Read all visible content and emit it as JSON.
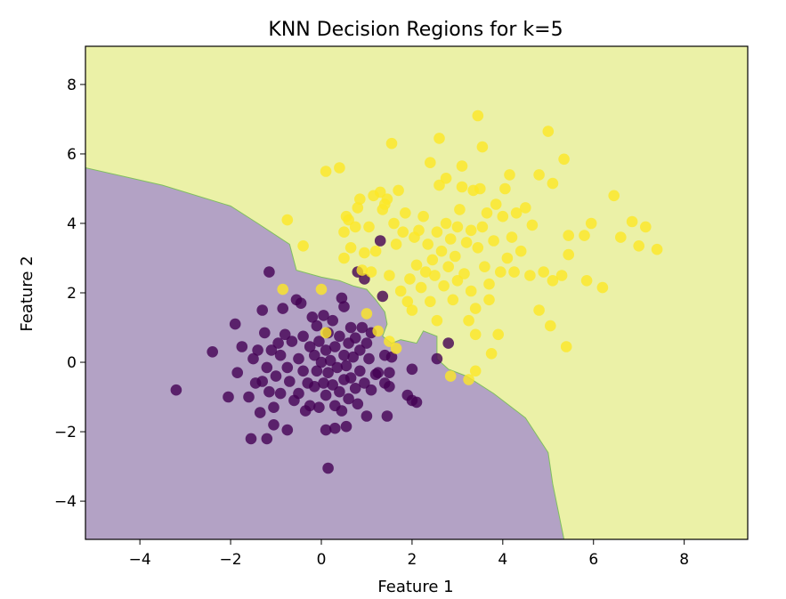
{
  "chart_data": {
    "type": "scatter",
    "title": "KNN Decision Regions for k=5",
    "xlabel": "Feature 1",
    "ylabel": "Feature 2",
    "xlim": [
      -5.2,
      9.4
    ],
    "ylim": [
      -5.1,
      9.1
    ],
    "xticks": [
      -4,
      -2,
      0,
      2,
      4,
      6,
      8
    ],
    "yticks": [
      -4,
      -2,
      0,
      2,
      4,
      6,
      8
    ],
    "xtick_labels": [
      "−4",
      "−2",
      "0",
      "2",
      "4",
      "6",
      "8"
    ],
    "ytick_labels": [
      "−4",
      "−2",
      "0",
      "2",
      "4",
      "6",
      "8"
    ],
    "grid": false,
    "legend": null,
    "colors": {
      "class0_point": "#440154",
      "class1_point": "#fde725",
      "class0_region": "#b3a2c5",
      "class1_region": "#ebf1a7",
      "boundary": "#7fbf5f"
    },
    "decision_boundary": [
      [
        -5.2,
        5.6
      ],
      [
        -3.5,
        5.1
      ],
      [
        -2.0,
        4.5
      ],
      [
        -1.4,
        4.0
      ],
      [
        -0.7,
        3.4
      ],
      [
        -0.55,
        2.65
      ],
      [
        0.0,
        2.45
      ],
      [
        0.4,
        2.35
      ],
      [
        0.7,
        2.2
      ],
      [
        1.0,
        2.1
      ],
      [
        1.2,
        1.8
      ],
      [
        1.4,
        1.45
      ],
      [
        1.45,
        1.1
      ],
      [
        1.35,
        0.75
      ],
      [
        1.55,
        0.55
      ],
      [
        1.75,
        0.65
      ],
      [
        2.1,
        0.55
      ],
      [
        2.25,
        0.9
      ],
      [
        2.55,
        0.75
      ],
      [
        2.55,
        0.1
      ],
      [
        2.8,
        -0.2
      ],
      [
        3.2,
        -0.4
      ],
      [
        3.8,
        -0.9
      ],
      [
        4.5,
        -1.6
      ],
      [
        5.0,
        -2.6
      ],
      [
        5.1,
        -3.5
      ],
      [
        5.35,
        -5.1
      ]
    ],
    "series": [
      {
        "class": 0,
        "points": [
          [
            -3.2,
            -0.8
          ],
          [
            -2.4,
            0.3
          ],
          [
            -2.05,
            -1.0
          ],
          [
            -1.9,
            1.1
          ],
          [
            -1.85,
            -0.3
          ],
          [
            -1.75,
            0.45
          ],
          [
            -1.6,
            -1.0
          ],
          [
            -1.55,
            -2.2
          ],
          [
            -1.5,
            0.1
          ],
          [
            -1.45,
            -0.6
          ],
          [
            -1.4,
            0.35
          ],
          [
            -1.35,
            -1.45
          ],
          [
            -1.3,
            1.5
          ],
          [
            -1.3,
            -0.55
          ],
          [
            -1.25,
            0.85
          ],
          [
            -1.2,
            -2.2
          ],
          [
            -1.2,
            -0.15
          ],
          [
            -1.15,
            2.6
          ],
          [
            -1.15,
            -0.85
          ],
          [
            -1.1,
            0.35
          ],
          [
            -1.05,
            -1.3
          ],
          [
            -1.05,
            -1.8
          ],
          [
            -1.0,
            -0.4
          ],
          [
            -0.95,
            0.55
          ],
          [
            -0.9,
            0.2
          ],
          [
            -0.9,
            -0.9
          ],
          [
            -0.85,
            1.55
          ],
          [
            -0.8,
            0.8
          ],
          [
            -0.75,
            -0.15
          ],
          [
            -0.75,
            -1.95
          ],
          [
            -0.7,
            -0.55
          ],
          [
            -0.65,
            0.6
          ],
          [
            -0.6,
            -1.1
          ],
          [
            -0.55,
            1.8
          ],
          [
            -0.5,
            0.1
          ],
          [
            -0.5,
            -0.9
          ],
          [
            -0.45,
            1.7
          ],
          [
            -0.4,
            0.75
          ],
          [
            -0.4,
            -0.25
          ],
          [
            -0.35,
            -1.4
          ],
          [
            -0.3,
            -0.6
          ],
          [
            -0.25,
            0.45
          ],
          [
            -0.25,
            -1.25
          ],
          [
            -0.2,
            1.3
          ],
          [
            -0.15,
            0.2
          ],
          [
            -0.15,
            -0.7
          ],
          [
            -0.1,
            1.05
          ],
          [
            -0.1,
            -0.25
          ],
          [
            -0.05,
            0.6
          ],
          [
            -0.05,
            -1.3
          ],
          [
            0.0,
            0.0
          ],
          [
            0.05,
            -0.6
          ],
          [
            0.05,
            1.35
          ],
          [
            0.1,
            0.35
          ],
          [
            0.1,
            -0.95
          ],
          [
            0.1,
            -1.95
          ],
          [
            0.15,
            -0.3
          ],
          [
            0.15,
            0.85
          ],
          [
            0.15,
            -3.05
          ],
          [
            0.2,
            0.05
          ],
          [
            0.25,
            -0.65
          ],
          [
            0.25,
            1.2
          ],
          [
            0.3,
            0.45
          ],
          [
            0.3,
            -1.25
          ],
          [
            0.3,
            -1.9
          ],
          [
            0.35,
            -0.15
          ],
          [
            0.4,
            0.75
          ],
          [
            0.4,
            -0.85
          ],
          [
            0.45,
            -1.4
          ],
          [
            0.45,
            1.85
          ],
          [
            0.5,
            0.2
          ],
          [
            0.5,
            -0.5
          ],
          [
            0.5,
            1.6
          ],
          [
            0.55,
            -0.1
          ],
          [
            0.55,
            -1.85
          ],
          [
            0.6,
            0.55
          ],
          [
            0.6,
            -1.05
          ],
          [
            0.65,
            1.0
          ],
          [
            0.65,
            -0.45
          ],
          [
            0.7,
            0.15
          ],
          [
            0.75,
            -0.75
          ],
          [
            0.75,
            0.7
          ],
          [
            0.8,
            -1.2
          ],
          [
            0.8,
            2.6
          ],
          [
            0.85,
            0.35
          ],
          [
            0.85,
            -0.25
          ],
          [
            0.9,
            1.0
          ],
          [
            0.95,
            2.4
          ],
          [
            0.95,
            -0.6
          ],
          [
            1.0,
            0.55
          ],
          [
            1.0,
            -1.55
          ],
          [
            1.05,
            0.1
          ],
          [
            1.1,
            -0.8
          ],
          [
            1.1,
            0.85
          ],
          [
            1.2,
            -0.35
          ],
          [
            1.25,
            -0.3
          ],
          [
            1.3,
            3.5
          ],
          [
            1.35,
            1.9
          ],
          [
            1.4,
            0.2
          ],
          [
            1.4,
            -0.6
          ],
          [
            1.45,
            -1.55
          ],
          [
            1.5,
            -0.3
          ],
          [
            1.5,
            -0.7
          ],
          [
            1.55,
            0.15
          ],
          [
            1.9,
            -0.95
          ],
          [
            2.0,
            -1.1
          ],
          [
            2.0,
            -0.2
          ],
          [
            2.1,
            -1.15
          ],
          [
            2.55,
            0.1
          ],
          [
            2.8,
            0.55
          ]
        ]
      },
      {
        "class": 1,
        "points": [
          [
            -0.85,
            2.1
          ],
          [
            -0.75,
            4.1
          ],
          [
            -0.4,
            3.35
          ],
          [
            0.0,
            2.1
          ],
          [
            0.1,
            0.85
          ],
          [
            0.1,
            5.5
          ],
          [
            0.4,
            5.6
          ],
          [
            0.5,
            3.0
          ],
          [
            0.5,
            3.75
          ],
          [
            0.55,
            4.2
          ],
          [
            0.6,
            4.1
          ],
          [
            0.65,
            3.3
          ],
          [
            0.75,
            3.9
          ],
          [
            0.8,
            4.45
          ],
          [
            0.85,
            4.7
          ],
          [
            0.9,
            2.65
          ],
          [
            0.95,
            3.15
          ],
          [
            1.0,
            1.4
          ],
          [
            1.05,
            3.9
          ],
          [
            1.1,
            2.6
          ],
          [
            1.15,
            4.8
          ],
          [
            1.2,
            3.2
          ],
          [
            1.25,
            0.9
          ],
          [
            1.3,
            4.9
          ],
          [
            1.35,
            4.4
          ],
          [
            1.4,
            4.55
          ],
          [
            1.45,
            4.7
          ],
          [
            1.5,
            2.5
          ],
          [
            1.5,
            0.6
          ],
          [
            1.55,
            6.3
          ],
          [
            1.6,
            4.0
          ],
          [
            1.65,
            3.4
          ],
          [
            1.65,
            0.4
          ],
          [
            1.7,
            4.95
          ],
          [
            1.75,
            2.05
          ],
          [
            1.8,
            3.75
          ],
          [
            1.85,
            4.3
          ],
          [
            1.9,
            1.75
          ],
          [
            1.95,
            2.4
          ],
          [
            2.0,
            1.5
          ],
          [
            2.05,
            3.6
          ],
          [
            2.1,
            2.8
          ],
          [
            2.15,
            3.8
          ],
          [
            2.2,
            2.15
          ],
          [
            2.25,
            4.2
          ],
          [
            2.3,
            2.6
          ],
          [
            2.35,
            3.4
          ],
          [
            2.4,
            5.75
          ],
          [
            2.4,
            1.75
          ],
          [
            2.45,
            2.95
          ],
          [
            2.5,
            2.5
          ],
          [
            2.55,
            1.2
          ],
          [
            2.55,
            3.75
          ],
          [
            2.6,
            5.1
          ],
          [
            2.6,
            6.45
          ],
          [
            2.65,
            3.2
          ],
          [
            2.7,
            2.2
          ],
          [
            2.75,
            4.0
          ],
          [
            2.75,
            5.3
          ],
          [
            2.8,
            2.75
          ],
          [
            2.85,
            3.55
          ],
          [
            2.85,
            -0.4
          ],
          [
            2.9,
            1.8
          ],
          [
            2.95,
            3.05
          ],
          [
            3.0,
            3.9
          ],
          [
            3.0,
            2.35
          ],
          [
            3.05,
            4.4
          ],
          [
            3.1,
            5.05
          ],
          [
            3.1,
            5.65
          ],
          [
            3.15,
            2.55
          ],
          [
            3.2,
            3.45
          ],
          [
            3.25,
            1.2
          ],
          [
            3.25,
            -0.5
          ],
          [
            3.3,
            3.8
          ],
          [
            3.3,
            2.05
          ],
          [
            3.35,
            4.95
          ],
          [
            3.4,
            1.55
          ],
          [
            3.4,
            0.8
          ],
          [
            3.4,
            -0.25
          ],
          [
            3.45,
            7.1
          ],
          [
            3.45,
            3.3
          ],
          [
            3.5,
            5.0
          ],
          [
            3.55,
            6.2
          ],
          [
            3.55,
            3.9
          ],
          [
            3.6,
            2.75
          ],
          [
            3.65,
            4.3
          ],
          [
            3.7,
            1.8
          ],
          [
            3.7,
            2.25
          ],
          [
            3.75,
            0.25
          ],
          [
            3.8,
            3.5
          ],
          [
            3.85,
            4.55
          ],
          [
            3.9,
            0.8
          ],
          [
            3.95,
            2.6
          ],
          [
            4.0,
            4.2
          ],
          [
            4.05,
            5.0
          ],
          [
            4.1,
            3.0
          ],
          [
            4.15,
            5.4
          ],
          [
            4.2,
            3.6
          ],
          [
            4.25,
            2.6
          ],
          [
            4.3,
            4.3
          ],
          [
            4.4,
            3.2
          ],
          [
            4.5,
            4.45
          ],
          [
            4.6,
            2.5
          ],
          [
            4.65,
            3.95
          ],
          [
            4.8,
            5.4
          ],
          [
            4.8,
            1.5
          ],
          [
            4.9,
            2.6
          ],
          [
            5.0,
            6.65
          ],
          [
            5.05,
            1.05
          ],
          [
            5.1,
            5.15
          ],
          [
            5.1,
            2.35
          ],
          [
            5.3,
            2.5
          ],
          [
            5.35,
            5.85
          ],
          [
            5.4,
            0.45
          ],
          [
            5.45,
            3.1
          ],
          [
            5.45,
            3.65
          ],
          [
            5.8,
            3.65
          ],
          [
            5.85,
            2.35
          ],
          [
            5.95,
            4.0
          ],
          [
            6.2,
            2.15
          ],
          [
            6.45,
            4.8
          ],
          [
            6.6,
            3.6
          ],
          [
            6.85,
            4.05
          ],
          [
            7.0,
            3.35
          ],
          [
            7.15,
            3.9
          ],
          [
            7.4,
            3.25
          ]
        ]
      }
    ]
  }
}
